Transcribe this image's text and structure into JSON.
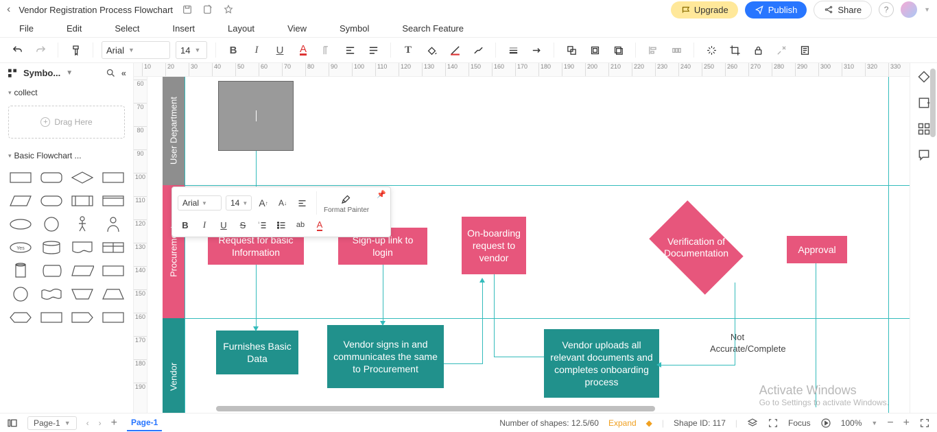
{
  "titlebar": {
    "doc_title": "Vendor Registration Process Flowchart",
    "upgrade": "Upgrade",
    "publish": "Publish",
    "share": "Share"
  },
  "menubar": {
    "items": [
      "File",
      "Edit",
      "Select",
      "Insert",
      "Layout",
      "View",
      "Symbol",
      "Search Feature"
    ]
  },
  "toolbar": {
    "font": "Arial",
    "size": "14"
  },
  "leftpanel": {
    "header": "Symbo...",
    "section_collect": "collect",
    "drop_hint": "Drag Here",
    "section_basic": "Basic Flowchart ..."
  },
  "ruler": {
    "h": [
      "10",
      "20",
      "30",
      "40",
      "50",
      "60",
      "70",
      "80",
      "90",
      "100",
      "110",
      "120",
      "130",
      "140",
      "150",
      "160",
      "170",
      "180",
      "190",
      "200",
      "210",
      "220",
      "230",
      "240",
      "250",
      "260",
      "270",
      "280",
      "290",
      "300",
      "310",
      "320",
      "330"
    ],
    "v": [
      "60",
      "70",
      "80",
      "90",
      "100",
      "110",
      "120",
      "130",
      "140",
      "150",
      "160",
      "170",
      "180",
      "190"
    ]
  },
  "lanes": {
    "dept": "User Department",
    "proc": "Procurement",
    "vend": "Vendor"
  },
  "boxes": {
    "req": "Request for basic Information",
    "signup": "Sign-up link to login",
    "onboard": "On-boarding request to vendor",
    "verify": "Verification of Documentation",
    "approval": "Approval",
    "furnish": "Furnishes Basic Data",
    "vsign": "Vendor signs in and communicates the same to Procurement",
    "vupload": "Vendor uploads all relevant documents and completes onboarding process",
    "notacc": "Not Accurate/Complete"
  },
  "mini": {
    "font": "Arial",
    "size": "14",
    "fp": "Format Painter"
  },
  "status": {
    "page_sel": "Page-1",
    "tab": "Page-1",
    "shapes": "Number of shapes: 12.5/60",
    "expand": "Expand",
    "shapeid": "Shape ID: 117",
    "focus": "Focus",
    "zoom": "100%"
  },
  "watermark": {
    "t1": "Activate Windows",
    "t2": "Go to Settings to activate Windows."
  },
  "colors": {
    "pink": "#E7567C",
    "teal": "#21918C",
    "grey": "#9a9a9a",
    "conn": "#33bbbb",
    "upgrade_bg": "#ffe89a",
    "publish_bg": "#2876ff"
  }
}
